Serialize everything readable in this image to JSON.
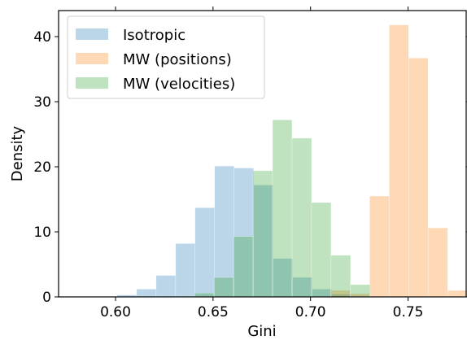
{
  "chart_data": {
    "type": "bar",
    "xlabel": "Gini",
    "ylabel": "Density",
    "xlim": [
      0.5708,
      0.7798
    ],
    "ylim": [
      0,
      44
    ],
    "xticks": [
      0.6,
      0.65,
      0.7,
      0.75
    ],
    "xtick_labels": [
      "0.60",
      "0.65",
      "0.70",
      "0.75"
    ],
    "yticks": [
      0,
      10,
      20,
      30,
      40
    ],
    "ytick_labels": [
      "0",
      "10",
      "20",
      "30",
      "40"
    ],
    "grid": false,
    "legend_position": "top-left",
    "series": [
      {
        "name": "Isotropic",
        "color": "#1f77b4",
        "alpha": 0.3,
        "bins": [
          {
            "x0": 0.6008,
            "x1": 0.6108,
            "value": 0.3
          },
          {
            "x0": 0.6108,
            "x1": 0.6208,
            "value": 1.2
          },
          {
            "x0": 0.6208,
            "x1": 0.6308,
            "value": 3.3
          },
          {
            "x0": 0.6308,
            "x1": 0.6408,
            "value": 8.2
          },
          {
            "x0": 0.6408,
            "x1": 0.6508,
            "value": 13.7
          },
          {
            "x0": 0.6508,
            "x1": 0.6608,
            "value": 20.1
          },
          {
            "x0": 0.6608,
            "x1": 0.6708,
            "value": 19.8
          },
          {
            "x0": 0.6708,
            "x1": 0.6808,
            "value": 17.2
          },
          {
            "x0": 0.6808,
            "x1": 0.6908,
            "value": 5.9
          },
          {
            "x0": 0.6908,
            "x1": 0.7008,
            "value": 3.0
          },
          {
            "x0": 0.7008,
            "x1": 0.7108,
            "value": 1.2
          },
          {
            "x0": 0.7108,
            "x1": 0.7208,
            "value": 0.4
          }
        ]
      },
      {
        "name": "MW (positions)",
        "color": "#ff7f0e",
        "alpha": 0.3,
        "bins": [
          {
            "x0": 0.7103,
            "x1": 0.7203,
            "value": 1.0
          },
          {
            "x0": 0.7203,
            "x1": 0.7303,
            "value": 0.5
          },
          {
            "x0": 0.7303,
            "x1": 0.7403,
            "value": 15.5
          },
          {
            "x0": 0.7403,
            "x1": 0.7503,
            "value": 41.8
          },
          {
            "x0": 0.7503,
            "x1": 0.7603,
            "value": 36.7
          },
          {
            "x0": 0.7603,
            "x1": 0.7703,
            "value": 10.6
          },
          {
            "x0": 0.7703,
            "x1": 0.7803,
            "value": 1.0
          }
        ]
      },
      {
        "name": "MW (velocities)",
        "color": "#2ca02c",
        "alpha": 0.3,
        "bins": [
          {
            "x0": 0.6405,
            "x1": 0.6505,
            "value": 0.6
          },
          {
            "x0": 0.6505,
            "x1": 0.6605,
            "value": 3.0
          },
          {
            "x0": 0.6605,
            "x1": 0.6705,
            "value": 9.3
          },
          {
            "x0": 0.6705,
            "x1": 0.6805,
            "value": 19.4
          },
          {
            "x0": 0.6805,
            "x1": 0.6905,
            "value": 27.2
          },
          {
            "x0": 0.6905,
            "x1": 0.7005,
            "value": 24.4
          },
          {
            "x0": 0.7005,
            "x1": 0.7105,
            "value": 14.5
          },
          {
            "x0": 0.7105,
            "x1": 0.7205,
            "value": 6.4
          },
          {
            "x0": 0.7205,
            "x1": 0.7305,
            "value": 1.9
          }
        ]
      }
    ]
  }
}
